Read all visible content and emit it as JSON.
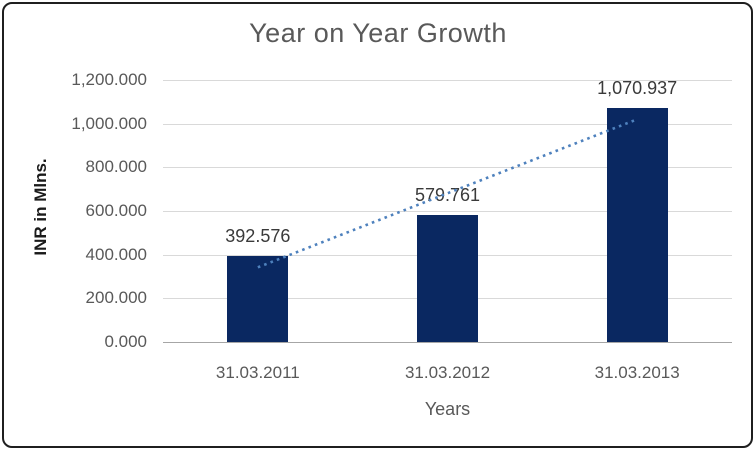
{
  "chart_data": {
    "type": "bar",
    "title": "Year on Year Growth",
    "xlabel": "Years",
    "ylabel": "INR in Mlns.",
    "categories": [
      "31.03.2011",
      "31.03.2012",
      "31.03.2013"
    ],
    "values": [
      392.576,
      579.761,
      1070.937
    ],
    "data_labels": [
      "392.576",
      "579.761",
      "1,070.937"
    ],
    "y_ticks": [
      "0.000",
      "200.000",
      "400.000",
      "600.000",
      "800.000",
      "1,000.000",
      "1,200.000"
    ],
    "ylim": [
      0,
      1200
    ],
    "grid": true,
    "legend": "none",
    "trendline": {
      "type": "linear",
      "style": "dotted",
      "endpoint_values": [
        342,
        1020
      ]
    },
    "colors": {
      "bar": "#0a2861",
      "trendline": "#4e81bd",
      "gridline": "#d9d9d9",
      "axis_line": "#a6a6a6",
      "title_text": "#595959",
      "tick_text": "#595959",
      "data_label_text": "#3a3a3a",
      "frame_border": "#1f1f1f"
    }
  }
}
